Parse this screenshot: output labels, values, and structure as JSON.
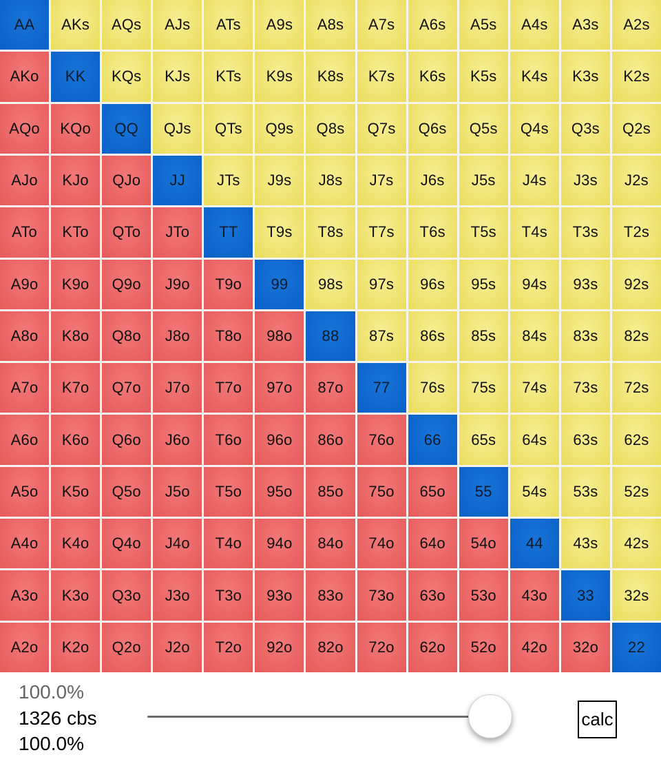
{
  "hand_grid": {
    "ranks": [
      "A",
      "K",
      "Q",
      "J",
      "T",
      "9",
      "8",
      "7",
      "6",
      "5",
      "4",
      "3",
      "2"
    ],
    "suited_suffix": "s",
    "offsuit_suffix": "o",
    "colors": {
      "pair": "#0a60c6",
      "suited": "#ebdc5c",
      "offsuit": "#e65a5a"
    }
  },
  "stats": {
    "pct_top": "100.0%",
    "combos": "1326 cbs",
    "pct_bottom": "100.0%"
  },
  "range_slider": {
    "value_percent": 100
  },
  "calc_label": "calc"
}
